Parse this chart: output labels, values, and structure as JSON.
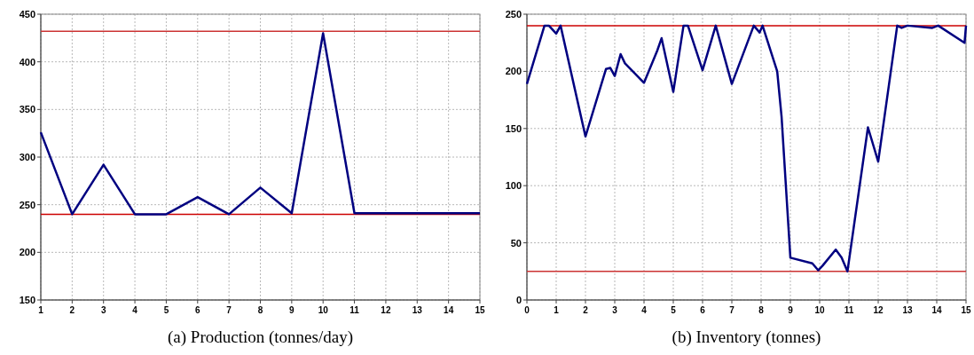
{
  "chart_data": [
    {
      "type": "line",
      "title": "(a) Production (tonnes/day)",
      "x": [
        1,
        2,
        3,
        4,
        5,
        6,
        7,
        8,
        9,
        10,
        11,
        12,
        13,
        14,
        15
      ],
      "xlim": [
        1,
        15
      ],
      "xticks": [
        1,
        2,
        3,
        4,
        5,
        6,
        7,
        8,
        9,
        10,
        11,
        12,
        13,
        14,
        15
      ],
      "ylim": [
        150,
        450
      ],
      "yticks": [
        150,
        200,
        250,
        300,
        350,
        400,
        450
      ],
      "grid": true,
      "marker": "none",
      "line_style": "solid",
      "series": [
        {
          "color": "#000080",
          "values": [
            326,
            240,
            292,
            240,
            240,
            258,
            240,
            268,
            241,
            430,
            241,
            241,
            241,
            241,
            241
          ]
        }
      ],
      "ref_lines": [
        {
          "axis": "y",
          "value": 432,
          "color": "#cc3333"
        },
        {
          "axis": "y",
          "value": 240,
          "color": "#cc0000"
        }
      ]
    },
    {
      "type": "line",
      "title": "(b) Inventory (tonnes)",
      "xlim": [
        0,
        15
      ],
      "xticks": [
        0,
        1,
        2,
        3,
        4,
        5,
        6,
        7,
        8,
        9,
        10,
        11,
        12,
        13,
        14,
        15
      ],
      "ylim": [
        0,
        250
      ],
      "yticks": [
        0,
        50,
        100,
        150,
        200,
        250
      ],
      "grid": true,
      "marker": "none",
      "line_style": "solid",
      "series": [
        {
          "color": "#000080",
          "x": [
            0,
            0.6,
            0.75,
            1.0,
            1.15,
            2.0,
            2.7,
            2.85,
            3.0,
            3.2,
            3.35,
            4.0,
            4.45,
            4.6,
            5.0,
            5.35,
            5.5,
            6.0,
            6.45,
            7.0,
            7.75,
            7.95,
            8.05,
            8.55,
            8.7,
            9.0,
            9.75,
            9.95,
            10.1,
            10.55,
            10.75,
            10.95,
            11.65,
            12.0,
            12.65,
            12.8,
            13.0,
            13.85,
            14.05,
            14.95,
            15.0
          ],
          "values": [
            189,
            240,
            240,
            233,
            240,
            143,
            202,
            203,
            196,
            215,
            207,
            190,
            218,
            229,
            182,
            240,
            240,
            201,
            240,
            189,
            240,
            234,
            240,
            200,
            160,
            37,
            32,
            26,
            30,
            44,
            37,
            25,
            151,
            121,
            240,
            238,
            240,
            238,
            240,
            225,
            240
          ]
        }
      ],
      "ref_lines": [
        {
          "axis": "y",
          "value": 240,
          "color": "#cc0000"
        },
        {
          "axis": "y",
          "value": 25,
          "color": "#cc3333"
        }
      ]
    }
  ]
}
